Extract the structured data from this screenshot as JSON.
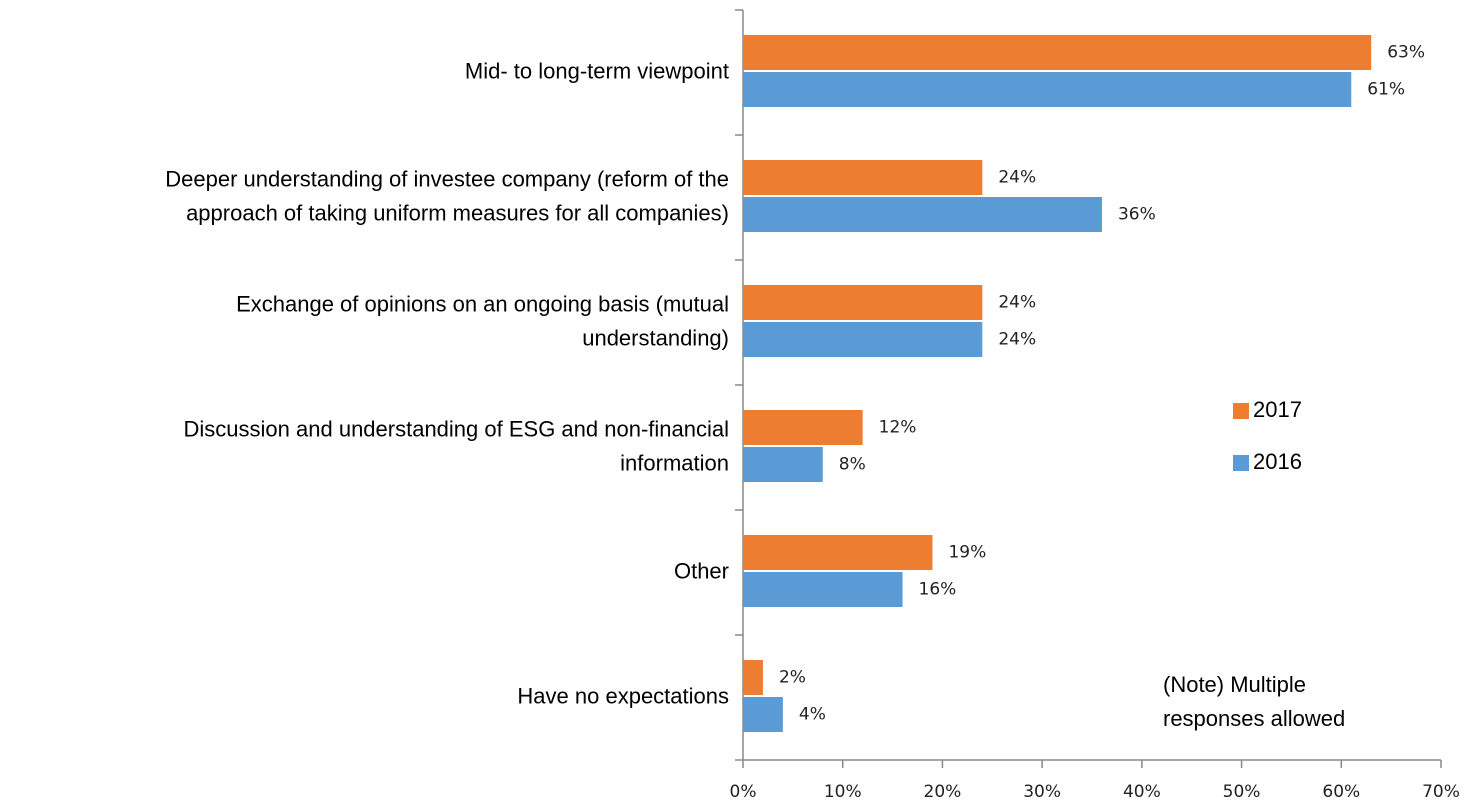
{
  "chart_data": {
    "type": "hbar",
    "categories": [
      [
        "Mid- to long-term viewpoint"
      ],
      [
        "Deeper understanding of investee company (reform of the",
        "approach of taking uniform measures for all companies)"
      ],
      [
        "Exchange of opinions on an ongoing basis (mutual",
        "understanding)"
      ],
      [
        "Discussion and understanding of ESG and non-financial",
        "information"
      ],
      [
        "Other"
      ],
      [
        "Have no expectations"
      ]
    ],
    "series": [
      {
        "name": "2017",
        "color": "#ED7D31",
        "values": [
          63,
          24,
          24,
          12,
          19,
          2
        ],
        "value_labels": [
          "63%",
          "24%",
          "24%",
          "12%",
          "19%",
          "2%"
        ]
      },
      {
        "name": "2016",
        "color": "#5B9BD5",
        "values": [
          61,
          36,
          24,
          8,
          16,
          4
        ],
        "value_labels": [
          "61%",
          "36%",
          "24%",
          "8%",
          "16%",
          "4%"
        ]
      }
    ],
    "xlim": [
      0,
      70
    ],
    "xticks": [
      {
        "value": 0,
        "label": "0%"
      },
      {
        "value": 10,
        "label": "10%"
      },
      {
        "value": 20,
        "label": "20%"
      },
      {
        "value": 30,
        "label": "30%"
      },
      {
        "value": 40,
        "label": "40%"
      },
      {
        "value": 50,
        "label": "50%"
      },
      {
        "value": 60,
        "label": "60%"
      },
      {
        "value": 70,
        "label": "70%"
      }
    ],
    "annotation": [
      "(Note) Multiple",
      "responses allowed"
    ]
  }
}
